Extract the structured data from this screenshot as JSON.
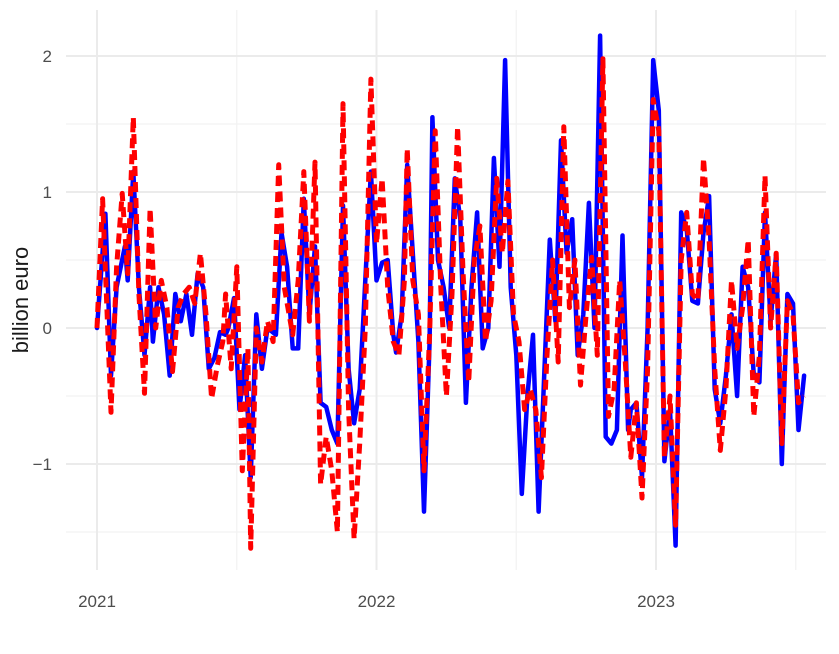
{
  "chart_data": {
    "type": "line",
    "title": "",
    "xlabel": "",
    "ylabel": "billion euro",
    "x_unit": "year",
    "xlim": [
      2021.0,
      2023.52
    ],
    "ylim": [
      -1.78,
      2.36
    ],
    "x_ticks": [
      2021,
      2022,
      2023
    ],
    "x_tick_labels": [
      "2021",
      "2022",
      "2023"
    ],
    "y_ticks": [
      -1,
      0,
      1,
      2
    ],
    "y_tick_labels": [
      "−1",
      "0",
      "1",
      "2"
    ],
    "grid": true,
    "legend": "none",
    "series": [
      {
        "color": "#0000ff",
        "style": "solid",
        "points": [
          [
            2021.0,
            0.0
          ],
          [
            2021.03,
            0.84
          ],
          [
            2021.05,
            -0.35
          ],
          [
            2021.07,
            0.3
          ],
          [
            2021.1,
            0.6
          ],
          [
            2021.11,
            0.35
          ],
          [
            2021.13,
            1.15
          ],
          [
            2021.15,
            0.3
          ],
          [
            2021.17,
            -0.2
          ],
          [
            2021.19,
            0.3
          ],
          [
            2021.2,
            -0.1
          ],
          [
            2021.22,
            0.3
          ],
          [
            2021.24,
            0.1
          ],
          [
            2021.26,
            -0.35
          ],
          [
            2021.28,
            0.25
          ],
          [
            2021.3,
            0.05
          ],
          [
            2021.32,
            0.25
          ],
          [
            2021.34,
            -0.05
          ],
          [
            2021.36,
            0.4
          ],
          [
            2021.38,
            0.3
          ],
          [
            2021.4,
            -0.3
          ],
          [
            2021.42,
            -0.22
          ],
          [
            2021.44,
            -0.03
          ],
          [
            2021.46,
            -0.05
          ],
          [
            2021.47,
            0.0
          ],
          [
            2021.49,
            0.22
          ],
          [
            2021.51,
            -0.6
          ],
          [
            2021.53,
            -0.2
          ],
          [
            2021.55,
            -1.1
          ],
          [
            2021.57,
            0.1
          ],
          [
            2021.59,
            -0.3
          ],
          [
            2021.61,
            0.0
          ],
          [
            2021.64,
            -0.05
          ],
          [
            2021.66,
            0.7
          ],
          [
            2021.68,
            0.45
          ],
          [
            2021.7,
            -0.15
          ],
          [
            2021.72,
            -0.15
          ],
          [
            2021.74,
            0.95
          ],
          [
            2021.76,
            0.1
          ],
          [
            2021.78,
            0.6
          ],
          [
            2021.8,
            -0.55
          ],
          [
            2021.82,
            -0.58
          ],
          [
            2021.84,
            -0.75
          ],
          [
            2021.86,
            -0.85
          ],
          [
            2021.88,
            0.9
          ],
          [
            2021.9,
            -0.3
          ],
          [
            2021.92,
            -0.7
          ],
          [
            2021.94,
            -0.45
          ],
          [
            2021.96,
            0.35
          ],
          [
            2021.98,
            1.15
          ],
          [
            2022.0,
            0.35
          ],
          [
            2022.02,
            0.48
          ],
          [
            2022.04,
            0.5
          ],
          [
            2022.06,
            -0.05
          ],
          [
            2022.07,
            -0.18
          ],
          [
            2022.09,
            0.1
          ],
          [
            2022.11,
            1.2
          ],
          [
            2022.13,
            0.55
          ],
          [
            2022.15,
            -0.1
          ],
          [
            2022.17,
            -1.35
          ],
          [
            2022.19,
            -0.1
          ],
          [
            2022.2,
            1.55
          ],
          [
            2022.22,
            0.5
          ],
          [
            2022.24,
            0.3
          ],
          [
            2022.26,
            0.0
          ],
          [
            2022.28,
            1.1
          ],
          [
            2022.3,
            0.8
          ],
          [
            2022.32,
            -0.55
          ],
          [
            2022.34,
            0.3
          ],
          [
            2022.36,
            0.85
          ],
          [
            2022.38,
            -0.15
          ],
          [
            2022.4,
            0.0
          ],
          [
            2022.42,
            1.25
          ],
          [
            2022.44,
            0.45
          ],
          [
            2022.46,
            1.97
          ],
          [
            2022.48,
            0.3
          ],
          [
            2022.5,
            -0.2
          ],
          [
            2022.52,
            -1.22
          ],
          [
            2022.54,
            -0.5
          ],
          [
            2022.56,
            -0.05
          ],
          [
            2022.58,
            -1.35
          ],
          [
            2022.6,
            -0.35
          ],
          [
            2022.62,
            0.65
          ],
          [
            2022.64,
            0.05
          ],
          [
            2022.66,
            1.38
          ],
          [
            2022.68,
            0.55
          ],
          [
            2022.7,
            0.8
          ],
          [
            2022.72,
            -0.2
          ],
          [
            2022.74,
            0.1
          ],
          [
            2022.76,
            0.92
          ],
          [
            2022.78,
            0.0
          ],
          [
            2022.8,
            2.15
          ],
          [
            2022.82,
            -0.8
          ],
          [
            2022.84,
            -0.85
          ],
          [
            2022.86,
            -0.75
          ],
          [
            2022.88,
            0.68
          ],
          [
            2022.9,
            -0.75
          ],
          [
            2022.91,
            -0.6
          ],
          [
            2022.93,
            -0.55
          ],
          [
            2022.95,
            -1.1
          ],
          [
            2022.97,
            0.0
          ],
          [
            2022.99,
            1.97
          ],
          [
            2023.01,
            1.6
          ],
          [
            2023.03,
            -0.98
          ],
          [
            2023.05,
            -0.6
          ],
          [
            2023.07,
            -1.6
          ],
          [
            2023.09,
            0.85
          ],
          [
            2023.11,
            0.73
          ],
          [
            2023.13,
            0.2
          ],
          [
            2023.15,
            0.18
          ],
          [
            2023.17,
            0.7
          ],
          [
            2023.19,
            0.97
          ],
          [
            2023.21,
            -0.45
          ],
          [
            2023.23,
            -0.7
          ],
          [
            2023.25,
            -0.35
          ],
          [
            2023.27,
            0.1
          ],
          [
            2023.29,
            -0.5
          ],
          [
            2023.31,
            0.45
          ],
          [
            2023.33,
            0.3
          ],
          [
            2023.35,
            -0.35
          ],
          [
            2023.37,
            -0.4
          ],
          [
            2023.39,
            0.85
          ],
          [
            2023.41,
            0.05
          ],
          [
            2023.43,
            0.55
          ],
          [
            2023.45,
            -1.0
          ],
          [
            2023.47,
            0.25
          ],
          [
            2023.49,
            0.18
          ],
          [
            2023.51,
            -0.75
          ],
          [
            2023.53,
            -0.35
          ]
        ]
      },
      {
        "color": "#ff0000",
        "style": "dashed",
        "points": [
          [
            2021.0,
            0.0
          ],
          [
            2021.02,
            0.95
          ],
          [
            2021.05,
            -0.62
          ],
          [
            2021.07,
            0.45
          ],
          [
            2021.09,
            0.99
          ],
          [
            2021.11,
            0.4
          ],
          [
            2021.13,
            1.55
          ],
          [
            2021.15,
            0.25
          ],
          [
            2021.17,
            -0.48
          ],
          [
            2021.19,
            0.88
          ],
          [
            2021.21,
            0.0
          ],
          [
            2021.23,
            0.35
          ],
          [
            2021.25,
            0.15
          ],
          [
            2021.27,
            -0.32
          ],
          [
            2021.29,
            0.15
          ],
          [
            2021.31,
            0.25
          ],
          [
            2021.33,
            0.3
          ],
          [
            2021.35,
            0.18
          ],
          [
            2021.37,
            0.55
          ],
          [
            2021.39,
            0.1
          ],
          [
            2021.41,
            -0.52
          ],
          [
            2021.43,
            -0.28
          ],
          [
            2021.45,
            -0.1
          ],
          [
            2021.46,
            0.25
          ],
          [
            2021.48,
            -0.3
          ],
          [
            2021.5,
            0.45
          ],
          [
            2021.52,
            -1.05
          ],
          [
            2021.54,
            -0.15
          ],
          [
            2021.55,
            -1.62
          ],
          [
            2021.57,
            0.0
          ],
          [
            2021.59,
            -0.25
          ],
          [
            2021.61,
            0.05
          ],
          [
            2021.63,
            -0.1
          ],
          [
            2021.65,
            1.2
          ],
          [
            2021.67,
            0.3
          ],
          [
            2021.7,
            -0.05
          ],
          [
            2021.72,
            0.35
          ],
          [
            2021.74,
            1.15
          ],
          [
            2021.76,
            0.05
          ],
          [
            2021.78,
            1.22
          ],
          [
            2021.8,
            -1.15
          ],
          [
            2021.82,
            -0.8
          ],
          [
            2021.84,
            -1.05
          ],
          [
            2021.86,
            -1.5
          ],
          [
            2021.88,
            1.65
          ],
          [
            2021.9,
            -0.6
          ],
          [
            2021.92,
            -1.55
          ],
          [
            2021.94,
            -0.85
          ],
          [
            2021.96,
            0.0
          ],
          [
            2021.98,
            1.83
          ],
          [
            2022.0,
            0.62
          ],
          [
            2022.02,
            1.1
          ],
          [
            2022.04,
            0.3
          ],
          [
            2022.06,
            -0.1
          ],
          [
            2022.08,
            -0.2
          ],
          [
            2022.1,
            0.35
          ],
          [
            2022.11,
            1.32
          ],
          [
            2022.13,
            0.35
          ],
          [
            2022.15,
            0.1
          ],
          [
            2022.17,
            -1.05
          ],
          [
            2022.19,
            -0.05
          ],
          [
            2022.21,
            1.45
          ],
          [
            2022.23,
            0.3
          ],
          [
            2022.25,
            -0.5
          ],
          [
            2022.27,
            0.25
          ],
          [
            2022.29,
            1.48
          ],
          [
            2022.31,
            0.4
          ],
          [
            2022.33,
            -0.4
          ],
          [
            2022.35,
            0.5
          ],
          [
            2022.37,
            0.75
          ],
          [
            2022.39,
            -0.1
          ],
          [
            2022.41,
            0.2
          ],
          [
            2022.43,
            1.1
          ],
          [
            2022.45,
            0.55
          ],
          [
            2022.47,
            1.08
          ],
          [
            2022.49,
            0.1
          ],
          [
            2022.51,
            -0.1
          ],
          [
            2022.53,
            -0.6
          ],
          [
            2022.55,
            -0.45
          ],
          [
            2022.57,
            -0.6
          ],
          [
            2022.59,
            -1.1
          ],
          [
            2022.61,
            -0.2
          ],
          [
            2022.63,
            0.5
          ],
          [
            2022.65,
            -0.25
          ],
          [
            2022.67,
            1.48
          ],
          [
            2022.69,
            0.15
          ],
          [
            2022.71,
            0.5
          ],
          [
            2022.73,
            -0.42
          ],
          [
            2022.75,
            0.1
          ],
          [
            2022.77,
            0.52
          ],
          [
            2022.79,
            -0.2
          ],
          [
            2022.81,
            1.98
          ],
          [
            2022.83,
            -0.65
          ],
          [
            2022.85,
            -0.45
          ],
          [
            2022.87,
            0.35
          ],
          [
            2022.89,
            -0.25
          ],
          [
            2022.91,
            -0.95
          ],
          [
            2022.93,
            -0.55
          ],
          [
            2022.95,
            -1.25
          ],
          [
            2022.97,
            -0.3
          ],
          [
            2022.99,
            1.68
          ],
          [
            2023.01,
            1.45
          ],
          [
            2023.03,
            -0.95
          ],
          [
            2023.05,
            -0.5
          ],
          [
            2023.07,
            -1.45
          ],
          [
            2023.09,
            0.5
          ],
          [
            2023.11,
            0.85
          ],
          [
            2023.13,
            0.25
          ],
          [
            2023.15,
            0.2
          ],
          [
            2023.17,
            1.25
          ],
          [
            2023.19,
            0.65
          ],
          [
            2023.21,
            -0.3
          ],
          [
            2023.23,
            -0.9
          ],
          [
            2023.25,
            -0.45
          ],
          [
            2023.27,
            0.35
          ],
          [
            2023.29,
            -0.15
          ],
          [
            2023.31,
            0.15
          ],
          [
            2023.33,
            0.65
          ],
          [
            2023.35,
            -0.65
          ],
          [
            2023.37,
            -0.2
          ],
          [
            2023.39,
            1.12
          ],
          [
            2023.41,
            0.0
          ],
          [
            2023.43,
            0.55
          ],
          [
            2023.45,
            -0.85
          ],
          [
            2023.47,
            0.2
          ],
          [
            2023.49,
            0.1
          ],
          [
            2023.51,
            -0.55
          ],
          [
            2023.53,
            -0.5
          ]
        ]
      }
    ]
  }
}
